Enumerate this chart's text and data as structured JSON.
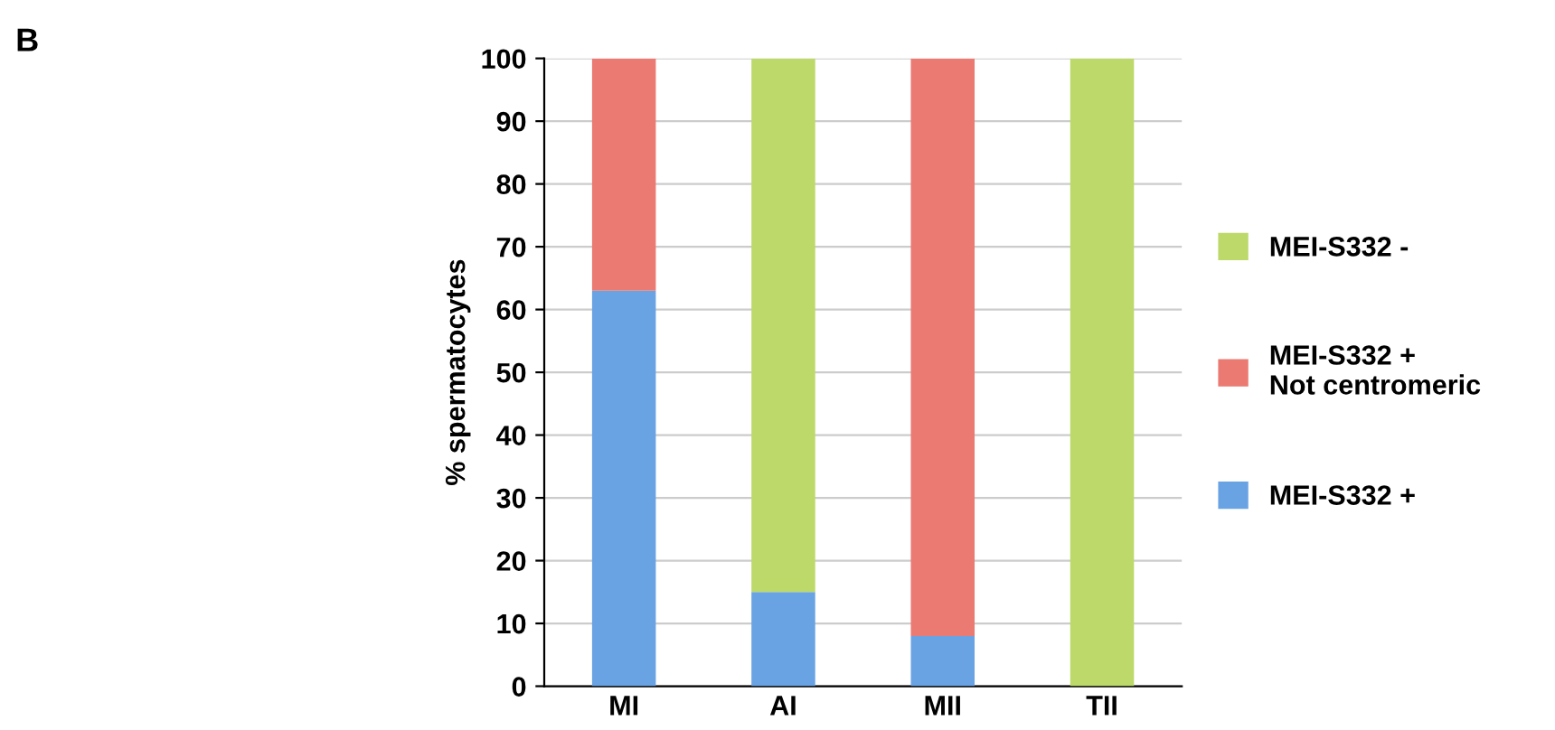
{
  "chart_data": {
    "type": "bar",
    "title": "B",
    "ylabel": "% spermatocytes",
    "categories": [
      "MI",
      "AI",
      "MII",
      "TII"
    ],
    "stacked": true,
    "series": [
      {
        "name": "MEI-S332 +",
        "color": "#6aa3e3",
        "values": [
          63,
          15,
          8,
          0
        ]
      },
      {
        "name": "MEI-S332 +\nNot centromeric",
        "color": "#ea7a72",
        "values": [
          37,
          0,
          92,
          0
        ]
      },
      {
        "name": "MEI-S332 -",
        "color": "#bcd96a",
        "values": [
          0,
          85,
          0,
          100
        ]
      }
    ],
    "ylim": [
      0,
      100
    ],
    "yticks": [
      0,
      10,
      20,
      30,
      40,
      50,
      60,
      70,
      80,
      90,
      100
    ],
    "grid": "y",
    "legend": "right"
  }
}
